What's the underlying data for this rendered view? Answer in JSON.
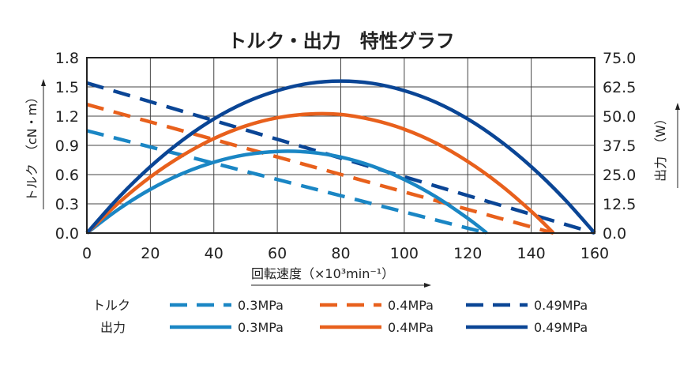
{
  "chart_data": {
    "type": "line",
    "title": "トルク・出力　特性グラフ",
    "xlabel": "回転速度（×10³min⁻¹）",
    "ylabel_left": "トルク　（cN・m）",
    "ylabel_right": "出力　（W）",
    "xlim": [
      0,
      160
    ],
    "ylim_left": [
      0,
      1.8
    ],
    "ylim_right": [
      0,
      75
    ],
    "grid": true,
    "x_ticks": [
      "0",
      "20",
      "40",
      "60",
      "80",
      "100",
      "120",
      "140",
      "160"
    ],
    "y_left_ticks": [
      "0.0",
      "0.3",
      "0.6",
      "0.9",
      "1.2",
      "1.5",
      "1.8"
    ],
    "y_right_ticks": [
      "0.0",
      "12.5",
      "25.0",
      "37.5",
      "50.0",
      "62.5",
      "75.0"
    ],
    "legend": {
      "position": "bottom",
      "torque_label": "トルク",
      "power_label": "出力"
    },
    "series": [
      {
        "name": "0.3MPa",
        "kind": "torque",
        "axis": "left",
        "style": "dashed",
        "color": "#1a86c4",
        "x": [
          0,
          126
        ],
        "y": [
          1.05,
          0
        ]
      },
      {
        "name": "0.4MPa",
        "kind": "torque",
        "axis": "left",
        "style": "dashed",
        "color": "#e8601c",
        "x": [
          0,
          147
        ],
        "y": [
          1.32,
          0
        ]
      },
      {
        "name": "0.49MPa",
        "kind": "torque",
        "axis": "left",
        "style": "dashed",
        "color": "#0a4595",
        "x": [
          0,
          160
        ],
        "y": [
          1.54,
          0
        ]
      },
      {
        "name": "0.3MPa",
        "kind": "power",
        "axis": "right",
        "style": "solid",
        "color": "#1a86c4",
        "x": [
          0,
          10,
          20,
          30,
          40,
          50,
          60,
          70,
          80,
          90,
          100,
          110,
          120,
          126
        ],
        "y": [
          0,
          10.2,
          18.7,
          25.4,
          30.3,
          33.5,
          34.9,
          34.6,
          32.5,
          28.6,
          22.9,
          15.5,
          6.3,
          0
        ]
      },
      {
        "name": "0.4MPa",
        "kind": "power",
        "axis": "right",
        "style": "solid",
        "color": "#e8601c",
        "x": [
          0,
          10,
          20,
          30,
          40,
          50,
          60,
          70,
          80,
          90,
          100,
          110,
          120,
          130,
          140,
          147
        ],
        "y": [
          0,
          12.9,
          24.0,
          33.1,
          40.4,
          45.8,
          49.3,
          50.9,
          50.7,
          48.4,
          44.4,
          38.5,
          30.6,
          20.9,
          9.3,
          0
        ]
      },
      {
        "name": "0.49MPa",
        "kind": "power",
        "axis": "right",
        "style": "solid",
        "color": "#0a4595",
        "x": [
          0,
          10,
          20,
          30,
          40,
          50,
          60,
          70,
          80,
          90,
          100,
          110,
          120,
          130,
          140,
          150,
          160
        ],
        "y": [
          0,
          15.2,
          28.4,
          39.6,
          48.8,
          55.9,
          60.9,
          64.0,
          65.0,
          64.0,
          60.9,
          55.9,
          48.8,
          39.6,
          28.4,
          15.2,
          0
        ]
      }
    ]
  }
}
